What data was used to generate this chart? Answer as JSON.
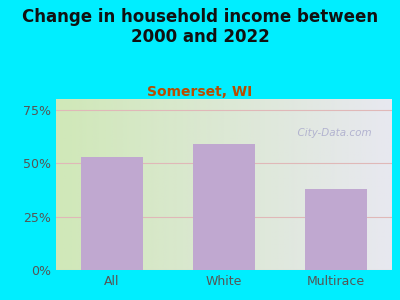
{
  "categories": [
    "All",
    "White",
    "Multirace"
  ],
  "values": [
    53,
    59,
    38
  ],
  "bar_color": "#c0a8d0",
  "title": "Change in household income between\n2000 and 2022",
  "subtitle": "Somerset, WI",
  "title_fontsize": 12,
  "subtitle_fontsize": 10,
  "subtitle_color": "#b84c00",
  "title_color": "#111111",
  "background_color": "#00eeff",
  "plot_bg_top_left": "#d8eec0",
  "plot_bg_top_right": "#e8e8f0",
  "plot_bg_bot_left": "#d0e8b8",
  "plot_bg_bot_right": "#e0e0f0",
  "yticks": [
    0,
    25,
    50,
    75
  ],
  "ylim": [
    0,
    80
  ],
  "watermark": "  City-Data.com",
  "watermark_color": "#aaaacc",
  "grid_color": "#e0b8b8",
  "bar_width": 0.55,
  "tick_color": "#555555",
  "tick_fontsize": 9
}
